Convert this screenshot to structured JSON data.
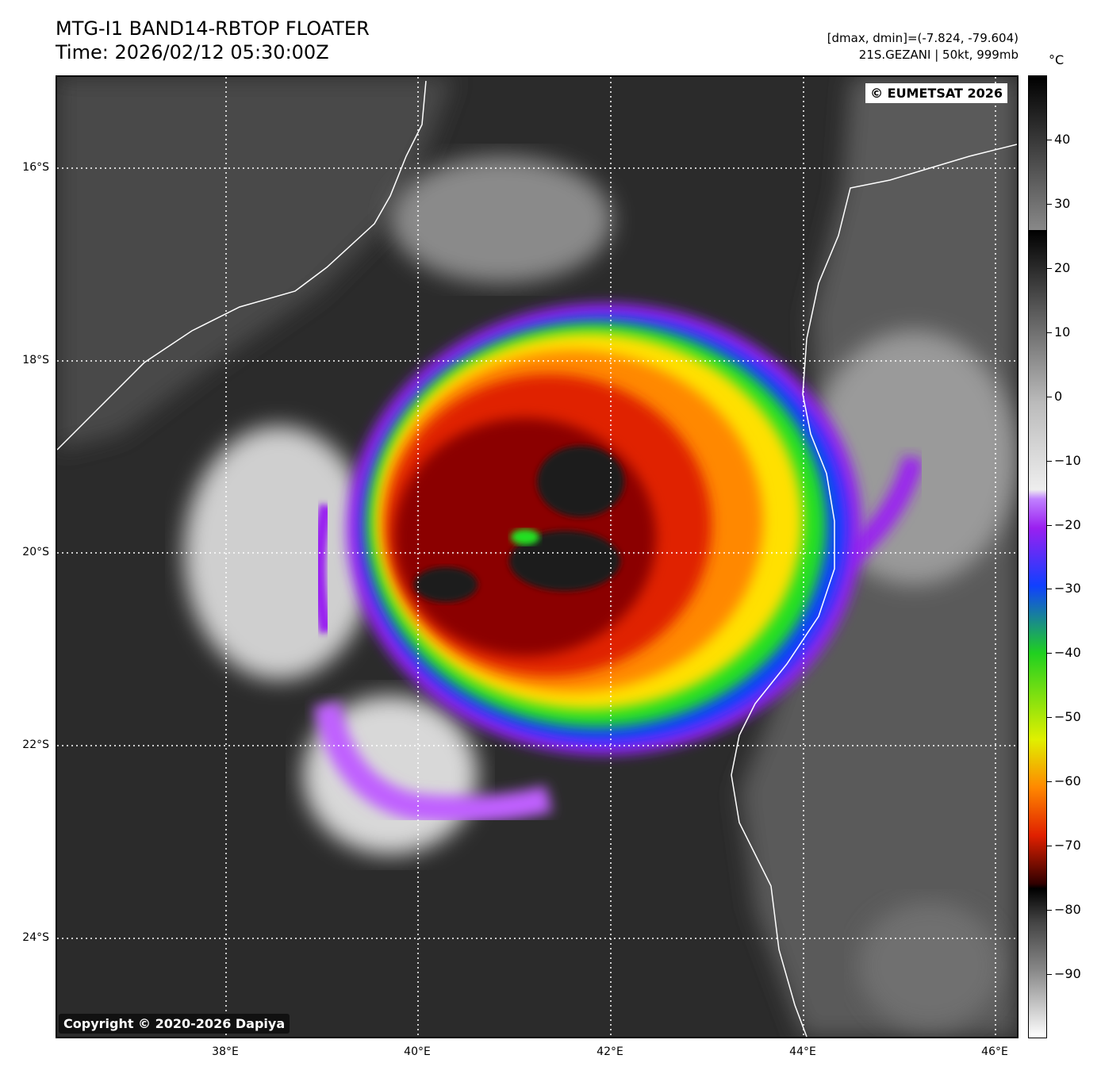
{
  "header": {
    "title_line1": "MTG-I1 BAND14-RBTOP FLOATER",
    "title_line2": "Time: 2026/02/12 05:30:00Z",
    "range_info": "[dmax, dmin]=(-7.824, -79.604)",
    "storm_info": "21S.GEZANI | 50kt, 999mb"
  },
  "map": {
    "eumetsat_badge": "© EUMETSAT 2026",
    "copyright_badge": "Copyright © 2020-2026 Dapiya",
    "lat_labels": [
      "16°S",
      "18°S",
      "20°S",
      "22°S",
      "24°S"
    ],
    "lon_labels": [
      "38°E",
      "40°E",
      "42°E",
      "44°E",
      "46°E"
    ],
    "storm_name": "21S.GEZANI",
    "intensity_kt": 50,
    "pressure_mb": 999
  },
  "colorbar": {
    "unit": "°C",
    "ticks": [
      "40",
      "30",
      "20",
      "10",
      "0",
      "−10",
      "−20",
      "−30",
      "−40",
      "−50",
      "−60",
      "−70",
      "−80",
      "−90"
    ],
    "range": [
      -100,
      50
    ]
  },
  "colors": {
    "cold_top": "#1a1a1a",
    "deep_red": "#8b0000",
    "red": "#e02000",
    "orange": "#ff8800",
    "yellow": "#ffe000",
    "green": "#20e020",
    "blue": "#1040ff",
    "purple": "#a020f0",
    "coastline": "#ffffff"
  }
}
